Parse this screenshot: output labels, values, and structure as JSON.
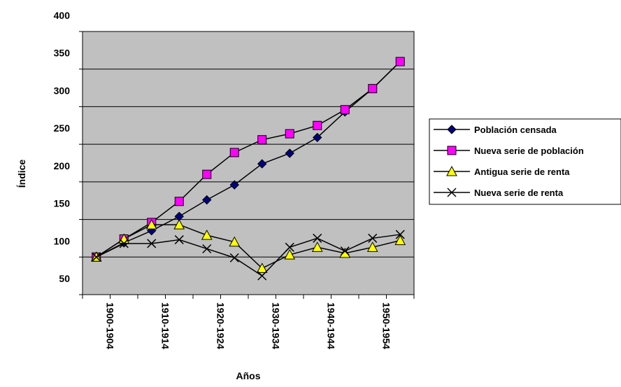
{
  "chart_data": {
    "type": "line",
    "x_label": "Años",
    "y_label": "Índice",
    "categories": [
      "1900-1904",
      null,
      "1910-1914",
      null,
      "1920-1924",
      null,
      "1930-1934",
      null,
      "1940-1944",
      null,
      "1950-1954",
      null
    ],
    "series": [
      {
        "name": "Población censada",
        "color": "#000080",
        "marker": "diamond",
        "values": [
          100,
          119,
          135,
          154,
          176,
          196,
          224,
          238,
          259,
          293,
          324,
          360
        ]
      },
      {
        "name": "Nueva serie de población",
        "color": "#ff00ff",
        "marker": "square",
        "values": [
          100,
          124,
          146,
          174,
          210,
          239,
          256,
          264,
          275,
          296,
          324,
          360
        ]
      },
      {
        "name": "Antigua serie de renta",
        "color": "#ffff00",
        "marker": "triangle",
        "values": [
          100,
          124,
          143,
          143,
          129,
          120,
          85,
          103,
          113,
          105,
          113,
          122
        ]
      },
      {
        "name": "Nueva serie de renta",
        "color": "#000000",
        "marker": "cross",
        "values": [
          100,
          118,
          118,
          123,
          111,
          99,
          75,
          113,
          125,
          108,
          125,
          130
        ]
      }
    ],
    "ylim": [
      50,
      400
    ],
    "yticks": [
      50,
      100,
      150,
      200,
      250,
      300,
      350,
      400
    ],
    "grid": true,
    "legend": "right"
  }
}
